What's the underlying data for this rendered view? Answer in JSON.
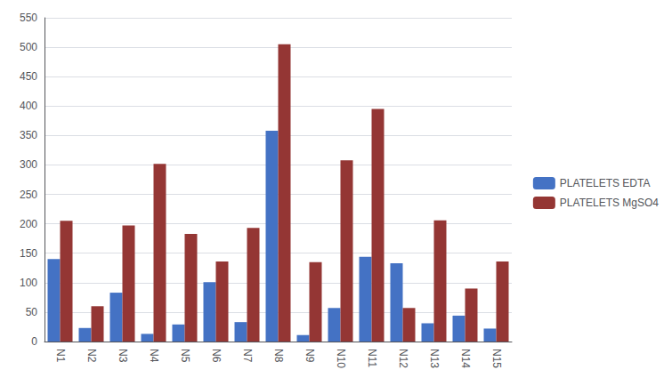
{
  "chart_data": {
    "type": "bar",
    "categories": [
      "N1",
      "N2",
      "N3",
      "N4",
      "N5",
      "N6",
      "N7",
      "N8",
      "N9",
      "N10",
      "N11",
      "N12",
      "N13",
      "N14",
      "N15"
    ],
    "series": [
      {
        "name": "PLATELETS EDTA",
        "color": "#4472C4",
        "values": [
          140,
          23,
          83,
          13,
          29,
          101,
          33,
          358,
          11,
          57,
          144,
          133,
          31,
          44,
          22
        ]
      },
      {
        "name": "PLATELETS MgSO4",
        "color": "#943634",
        "values": [
          205,
          60,
          197,
          302,
          183,
          136,
          193,
          505,
          135,
          308,
          395,
          57,
          206,
          90,
          136
        ]
      }
    ],
    "ylim": [
      0,
      550
    ],
    "yticks": [
      0,
      50,
      100,
      150,
      200,
      250,
      300,
      350,
      400,
      450,
      500,
      550
    ],
    "grid": true,
    "legend": "right"
  }
}
